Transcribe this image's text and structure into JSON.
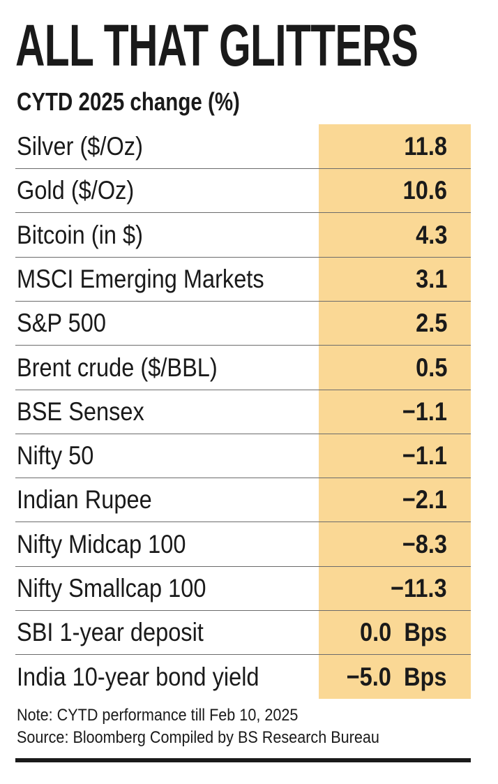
{
  "title": "ALL THAT GLITTERS",
  "subtitle": "CYTD 2025 change (%)",
  "table": {
    "rows": [
      [
        "Silver ($/Oz)",
        "11.8"
      ],
      [
        "Gold ($/Oz)",
        "10.6"
      ],
      [
        "Bitcoin (in $)",
        "4.3"
      ],
      [
        "MSCI Emerging Markets",
        "3.1"
      ],
      [
        "S&P 500",
        "2.5"
      ],
      [
        "Brent crude ($/BBL)",
        "0.5"
      ],
      [
        "BSE Sensex",
        "−1.1"
      ],
      [
        "Nifty 50",
        "−1.1"
      ],
      [
        "Indian Rupee",
        "−2.1"
      ],
      [
        "Nifty Midcap 100",
        "−8.3"
      ],
      [
        "Nifty Smallcap 100",
        "−11.3"
      ],
      [
        "SBI 1-year deposit",
        "0.0  Bps"
      ],
      [
        "India 10-year bond yield",
        "−5.0  Bps"
      ]
    ]
  },
  "notes": [
    "Note: CYTD performance till Feb 10, 2025",
    "Source: Bloomberg Compiled by BS Research Bureau"
  ]
}
